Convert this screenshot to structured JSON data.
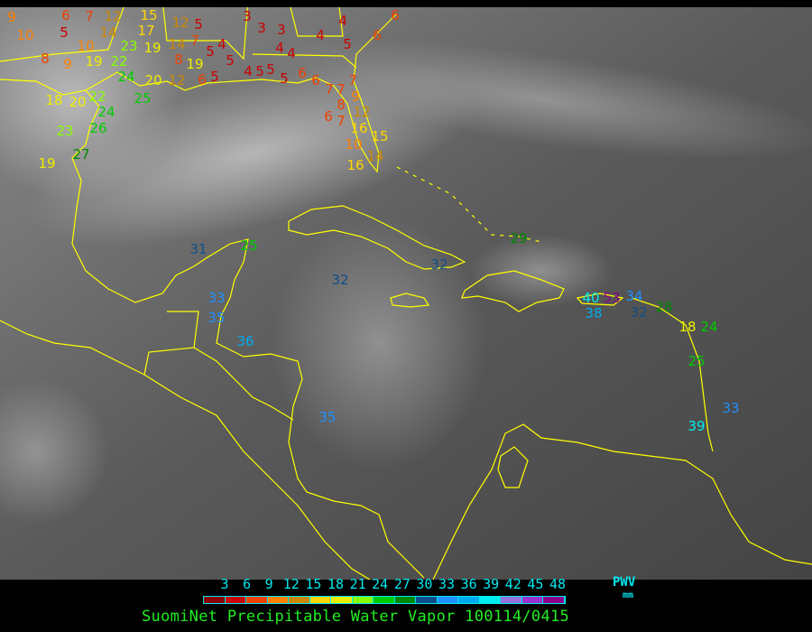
{
  "caption": "SuomiNet Precipitable Water Vapor 100114/0415",
  "legend": {
    "unit_label": "PWV",
    "unit": "mm",
    "ticks": [
      "3",
      "6",
      "9",
      "12",
      "15",
      "18",
      "21",
      "24",
      "27",
      "30",
      "33",
      "36",
      "39",
      "42",
      "45",
      "48"
    ],
    "colors": [
      "#8b0000",
      "#cc0000",
      "#f04000",
      "#ff8000",
      "#cc8800",
      "#ffd700",
      "#eeee00",
      "#88ff00",
      "#00cc00",
      "#008800",
      "#104e8b",
      "#1e90ff",
      "#00aaee",
      "#00eeee",
      "#9370db",
      "#9932cc",
      "#8b008b"
    ]
  },
  "colors": {
    "coastline": "#ffff00",
    "text": "#00e8f0",
    "caption": "#22ee22"
  },
  "stations": [
    "9",
    "10",
    "8",
    "9",
    "6",
    "7",
    "5",
    "12",
    "14",
    "15",
    "17",
    "12",
    "5",
    "10",
    "19",
    "23",
    "22",
    "19",
    "24",
    "20",
    "12",
    "14",
    "8",
    "19",
    "7",
    "5",
    "4",
    "5",
    "6",
    "5",
    "4",
    "5",
    "18",
    "20",
    "22",
    "24",
    "25",
    "23",
    "26",
    "27",
    "19",
    "3",
    "3",
    "3",
    "4",
    "4",
    "4",
    "4",
    "5",
    "5",
    "5",
    "6",
    "6",
    "7",
    "7",
    "7",
    "8",
    "6",
    "7",
    "9",
    "12",
    "16",
    "10",
    "15",
    "14",
    "16",
    "6",
    "6",
    "31",
    "25",
    "33",
    "35",
    "36",
    "32",
    "32",
    "29",
    "35",
    "40",
    "53",
    "34",
    "38",
    "32",
    "28",
    "18",
    "24",
    "25",
    "33",
    "39"
  ]
}
